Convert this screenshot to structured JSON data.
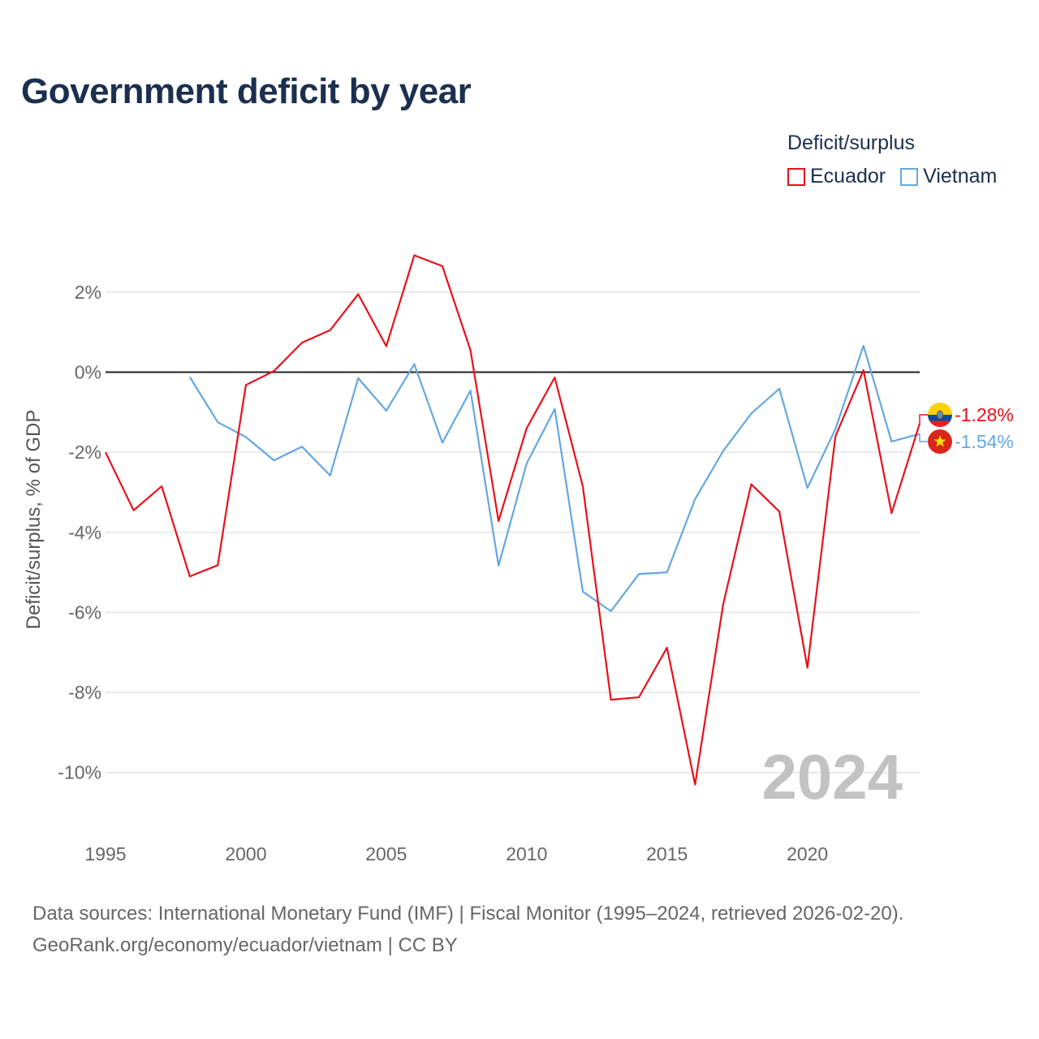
{
  "header": {
    "title": "Government deficit by year"
  },
  "legend": {
    "title": "Deficit/surplus",
    "items": [
      {
        "label": "Ecuador",
        "color": "#e8111a"
      },
      {
        "label": "Vietnam",
        "color": "#64a8e0"
      }
    ]
  },
  "footer": {
    "sources": "Data sources: International Monetary Fund (IMF) | Fiscal Monitor (1995–2024, retrieved 2026-02-20).",
    "credit": "GeoRank.org/economy/ecuador/vietnam | CC BY"
  },
  "chart_data": {
    "type": "line",
    "title": "Government deficit by year",
    "ylabel": "Deficit/surplus, % of GDP",
    "xlabel": "",
    "xlim": [
      1995,
      2024
    ],
    "ylim": [
      -11.1,
      3.6
    ],
    "x_ticks": [
      1995,
      2000,
      2005,
      2010,
      2015,
      2020
    ],
    "x_tick_labels": [
      "1995",
      "2000",
      "2005",
      "2010",
      "2015",
      "2020"
    ],
    "y_ticks": [
      2,
      0,
      -2,
      -4,
      -6,
      -8,
      -10
    ],
    "y_tick_labels": [
      "2%",
      "0%",
      "-2%",
      "-4%",
      "-6%",
      "-8%",
      "-10%"
    ],
    "watermark_year": "2024",
    "grid": true,
    "zero_line": true,
    "series": [
      {
        "name": "Ecuador",
        "color": "#e8111a",
        "end_label": "-1.28%",
        "end_value": -1.28,
        "flag": "ecuador-flag-icon",
        "x": [
          1995,
          1996,
          1997,
          1998,
          1999,
          2000,
          2001,
          2002,
          2003,
          2004,
          2005,
          2006,
          2007,
          2008,
          2009,
          2010,
          2011,
          2012,
          2013,
          2014,
          2015,
          2016,
          2017,
          2018,
          2019,
          2020,
          2021,
          2022,
          2023,
          2024
        ],
        "values": [
          -2.0,
          -3.45,
          -2.85,
          -5.1,
          -4.82,
          -0.32,
          0.03,
          0.74,
          1.05,
          1.95,
          0.65,
          2.92,
          2.65,
          0.55,
          -3.72,
          -1.4,
          -0.13,
          -2.85,
          -8.18,
          -8.12,
          -6.88,
          -10.3,
          -5.8,
          -2.8,
          -3.48,
          -7.38,
          -1.6,
          0.05,
          -3.52,
          -1.28
        ]
      },
      {
        "name": "Vietnam",
        "color": "#64a8e0",
        "end_label": "-1.54%",
        "end_value": -1.54,
        "flag": "vietnam-flag-icon",
        "x": [
          1998,
          1999,
          2000,
          2001,
          2002,
          2003,
          2004,
          2005,
          2006,
          2007,
          2008,
          2009,
          2010,
          2011,
          2012,
          2013,
          2014,
          2015,
          2016,
          2017,
          2018,
          2019,
          2020,
          2021,
          2022,
          2023,
          2024
        ],
        "values": [
          -0.12,
          -1.25,
          -1.62,
          -2.2,
          -1.86,
          -2.58,
          -0.15,
          -0.96,
          0.2,
          -1.76,
          -0.46,
          -4.83,
          -2.28,
          -0.92,
          -5.48,
          -5.97,
          -5.04,
          -5.0,
          -3.17,
          -1.97,
          -1.03,
          -0.41,
          -2.89,
          -1.42,
          0.66,
          -1.73,
          -1.54
        ]
      }
    ]
  }
}
